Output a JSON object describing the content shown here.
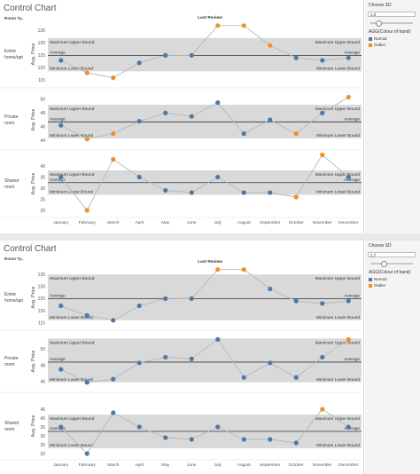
{
  "panels": [
    {
      "title": "Control Chart",
      "row_header": "Room Ty..",
      "col_header": "Last Review",
      "filter": {
        "label": "Choose SD",
        "value": "1.0",
        "slider_fraction": 0.17
      },
      "legend": {
        "title": "AGG(Colour of band)",
        "items": [
          {
            "label": "Normal",
            "color": "#4e79a7"
          },
          {
            "label": "Outlier",
            "color": "#f28e2b"
          }
        ]
      }
    },
    {
      "title": "Control Chart",
      "row_header": "Room Ty..",
      "col_header": "Last Review",
      "filter": {
        "label": "Choose SD",
        "value": "1.7",
        "slider_fraction": 0.3
      },
      "legend": {
        "title": "AGG(Colour of band)",
        "items": [
          {
            "label": "Normal",
            "color": "#4e79a7"
          },
          {
            "label": "Outlier",
            "color": "#f28e2b"
          }
        ]
      }
    }
  ],
  "bound_labels": {
    "max": "Maximum Upper Bound",
    "avg": "Average",
    "min": "Minimum Lower Bound"
  },
  "colors": {
    "normal": "#4e79a7",
    "outlier": "#f28e2b",
    "band": "#d9d9d9",
    "line": "#b8b8b8"
  },
  "chart_data": [
    {
      "type": "line",
      "months": [
        "January",
        "February",
        "March",
        "April",
        "May",
        "June",
        "July",
        "August",
        "September",
        "October",
        "November",
        "December"
      ],
      "ylabel": "Avg. Price",
      "lanes": [
        {
          "label": "Entire home/apt",
          "ticks": [
            115,
            120,
            125,
            130,
            135
          ],
          "ylim": [
            113,
            138
          ],
          "band": [
            118.6,
            132
          ],
          "avg": 125,
          "values": [
            123,
            118,
            116,
            122,
            125,
            125,
            137,
            137,
            129,
            124,
            123,
            124
          ],
          "outlier": [
            false,
            true,
            true,
            false,
            false,
            false,
            true,
            true,
            true,
            false,
            false,
            false
          ]
        },
        {
          "label": "Private room",
          "ticks": [
            44,
            46,
            48,
            50
          ],
          "ylim": [
            43,
            51
          ],
          "band": [
            44.3,
            49.2
          ],
          "avg": 46.7,
          "values": [
            46.2,
            44.2,
            45.0,
            46.8,
            48.0,
            47.5,
            49.5,
            45.0,
            47.0,
            45.0,
            48.0,
            50.3
          ],
          "outlier": [
            false,
            true,
            true,
            false,
            false,
            false,
            false,
            false,
            false,
            true,
            false,
            true
          ]
        },
        {
          "label": "Shared room",
          "ticks": [
            20,
            25,
            30,
            35,
            40
          ],
          "ylim": [
            18,
            46
          ],
          "band": [
            27,
            38
          ],
          "avg": 32.5,
          "values": [
            35,
            20,
            43,
            35,
            29,
            28,
            35,
            28,
            28,
            26,
            45,
            35
          ],
          "outlier": [
            false,
            true,
            true,
            false,
            false,
            false,
            false,
            false,
            false,
            true,
            true,
            false
          ]
        }
      ]
    },
    {
      "type": "line",
      "months": [
        "January",
        "February",
        "March",
        "April",
        "May",
        "June",
        "July",
        "August",
        "September",
        "October",
        "November",
        "December"
      ],
      "ylabel": "Avg. Price",
      "lanes": [
        {
          "label": "Entire home/apt",
          "ticks": [
            115,
            120,
            125,
            130,
            135
          ],
          "ylim": [
            113,
            138
          ],
          "band": [
            116,
            135
          ],
          "avg": 125,
          "values": [
            122,
            118,
            116,
            122,
            125,
            125,
            137,
            137,
            129,
            124,
            123,
            124
          ],
          "outlier": [
            false,
            false,
            false,
            false,
            false,
            false,
            true,
            true,
            false,
            false,
            false,
            false
          ]
        },
        {
          "label": "Private room",
          "ticks": [
            46,
            48,
            50
          ],
          "ylim": [
            45,
            52
          ],
          "band": [
            45.9,
            51.3
          ],
          "avg": 48.4,
          "values": [
            47.5,
            45.9,
            46.3,
            48.3,
            49.0,
            48.8,
            51.2,
            46.5,
            48.3,
            46.5,
            49.0,
            51.2
          ],
          "outlier": [
            false,
            false,
            false,
            false,
            false,
            false,
            false,
            false,
            false,
            false,
            false,
            true
          ]
        },
        {
          "label": "Shared room",
          "ticks": [
            20,
            25,
            30,
            35,
            40,
            45
          ],
          "ylim": [
            18,
            53
          ],
          "band": [
            23,
            42
          ],
          "avg": 32.5,
          "values": [
            35,
            20,
            43,
            35,
            29,
            28,
            35,
            28,
            28,
            26,
            45,
            35
          ],
          "outlier": [
            false,
            false,
            false,
            false,
            false,
            false,
            false,
            false,
            false,
            false,
            true,
            false
          ]
        }
      ]
    }
  ]
}
